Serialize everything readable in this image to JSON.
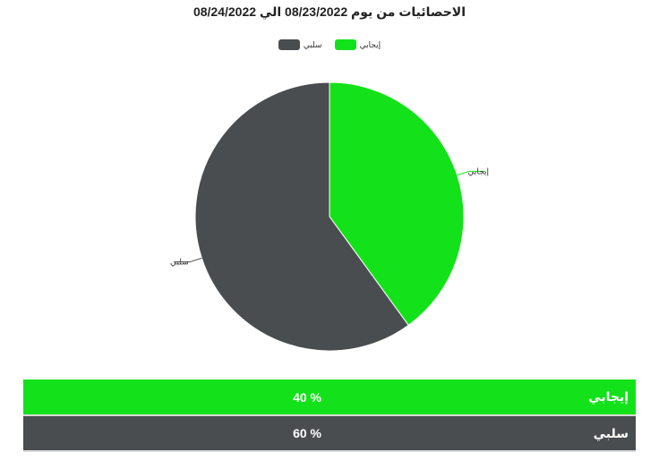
{
  "chart_data": {
    "type": "pie",
    "title": "الاحصائيات من يوم 08/23/2022 الي 08/24/2022",
    "legend": {
      "placement": "top-center",
      "entries": [
        "إيجابي",
        "سلبي"
      ]
    },
    "series": [
      {
        "categories": [
          "إيجابي",
          "سلبي"
        ],
        "values": [
          40,
          60
        ],
        "colors": [
          "#13e21b",
          "#4a4d4f"
        ]
      }
    ]
  },
  "table": {
    "rows": [
      {
        "label": "إيجابي",
        "value": "40 %",
        "color": "#13e21b"
      },
      {
        "label": "سلبي",
        "value": "60 %",
        "color": "#4a4d4f"
      }
    ]
  }
}
